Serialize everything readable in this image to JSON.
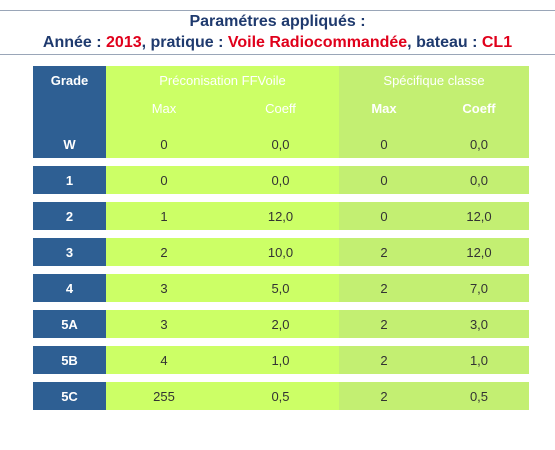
{
  "header": {
    "title": "Paramétres appliqués :",
    "annee_label": "Année : ",
    "annee_value": "2013",
    "pratique_label": ", pratique : ",
    "pratique_value": "Voile Radiocommandée",
    "bateau_label": ", bateau : ",
    "bateau_value": "CL1"
  },
  "table": {
    "grade_header": "Grade",
    "group_preconisation": "Préconisation FFVoile",
    "group_specifique": "Spécifique classe",
    "sub_max": "Max",
    "sub_coeff": "Coeff",
    "rows": [
      {
        "grade": "W",
        "p_max": "0",
        "p_coeff": "0,0",
        "s_max": "0",
        "s_coeff": "0,0"
      },
      {
        "grade": "1",
        "p_max": "0",
        "p_coeff": "0,0",
        "s_max": "0",
        "s_coeff": "0,0"
      },
      {
        "grade": "2",
        "p_max": "1",
        "p_coeff": "12,0",
        "s_max": "0",
        "s_coeff": "12,0"
      },
      {
        "grade": "3",
        "p_max": "2",
        "p_coeff": "10,0",
        "s_max": "2",
        "s_coeff": "12,0"
      },
      {
        "grade": "4",
        "p_max": "3",
        "p_coeff": "5,0",
        "s_max": "2",
        "s_coeff": "7,0"
      },
      {
        "grade": "5A",
        "p_max": "3",
        "p_coeff": "2,0",
        "s_max": "2",
        "s_coeff": "3,0"
      },
      {
        "grade": "5B",
        "p_max": "4",
        "p_coeff": "1,0",
        "s_max": "2",
        "s_coeff": "1,0"
      },
      {
        "grade": "5C",
        "p_max": "255",
        "p_coeff": "0,5",
        "s_max": "2",
        "s_coeff": "0,5"
      }
    ]
  },
  "colors": {
    "grade_bg": "#2e5f93",
    "preconisation_bg": "#ccff66",
    "specifique_bg": "#c3ef72",
    "title_text": "#1f3a6e",
    "highlight_text": "#e0001b"
  }
}
